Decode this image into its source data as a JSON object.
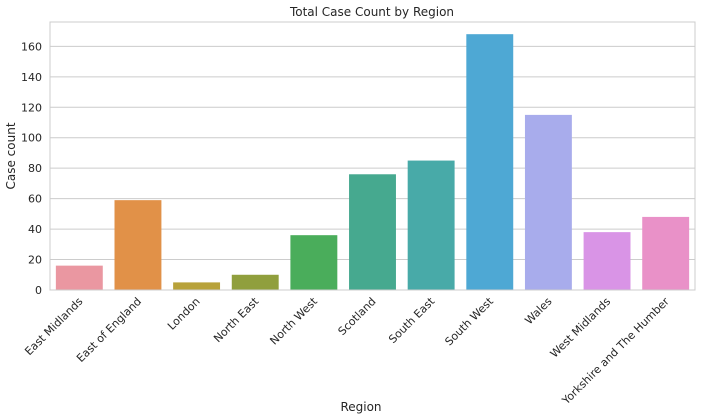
{
  "chart_data": {
    "type": "bar",
    "title": "Total Case Count by Region",
    "xlabel": "Region",
    "ylabel": "Case count",
    "categories": [
      "East Midlands",
      "East of England",
      "London",
      "North East",
      "North West",
      "Scotland",
      "South East",
      "South West",
      "Wales",
      "West Midlands",
      "Yorkshire and The Humber"
    ],
    "values": [
      16,
      59,
      5,
      10,
      36,
      76,
      85,
      168,
      115,
      38,
      48
    ],
    "colors": [
      "#ea97a1",
      "#e19148",
      "#b8a23a",
      "#909f3d",
      "#4aad5b",
      "#46a98f",
      "#48aaa8",
      "#4ea8d4",
      "#a8acec",
      "#d994e6",
      "#e991c8"
    ],
    "yticks": [
      0,
      20,
      40,
      60,
      80,
      100,
      120,
      140,
      160
    ],
    "ylim": [
      0,
      176
    ],
    "grid": "horizontal"
  }
}
